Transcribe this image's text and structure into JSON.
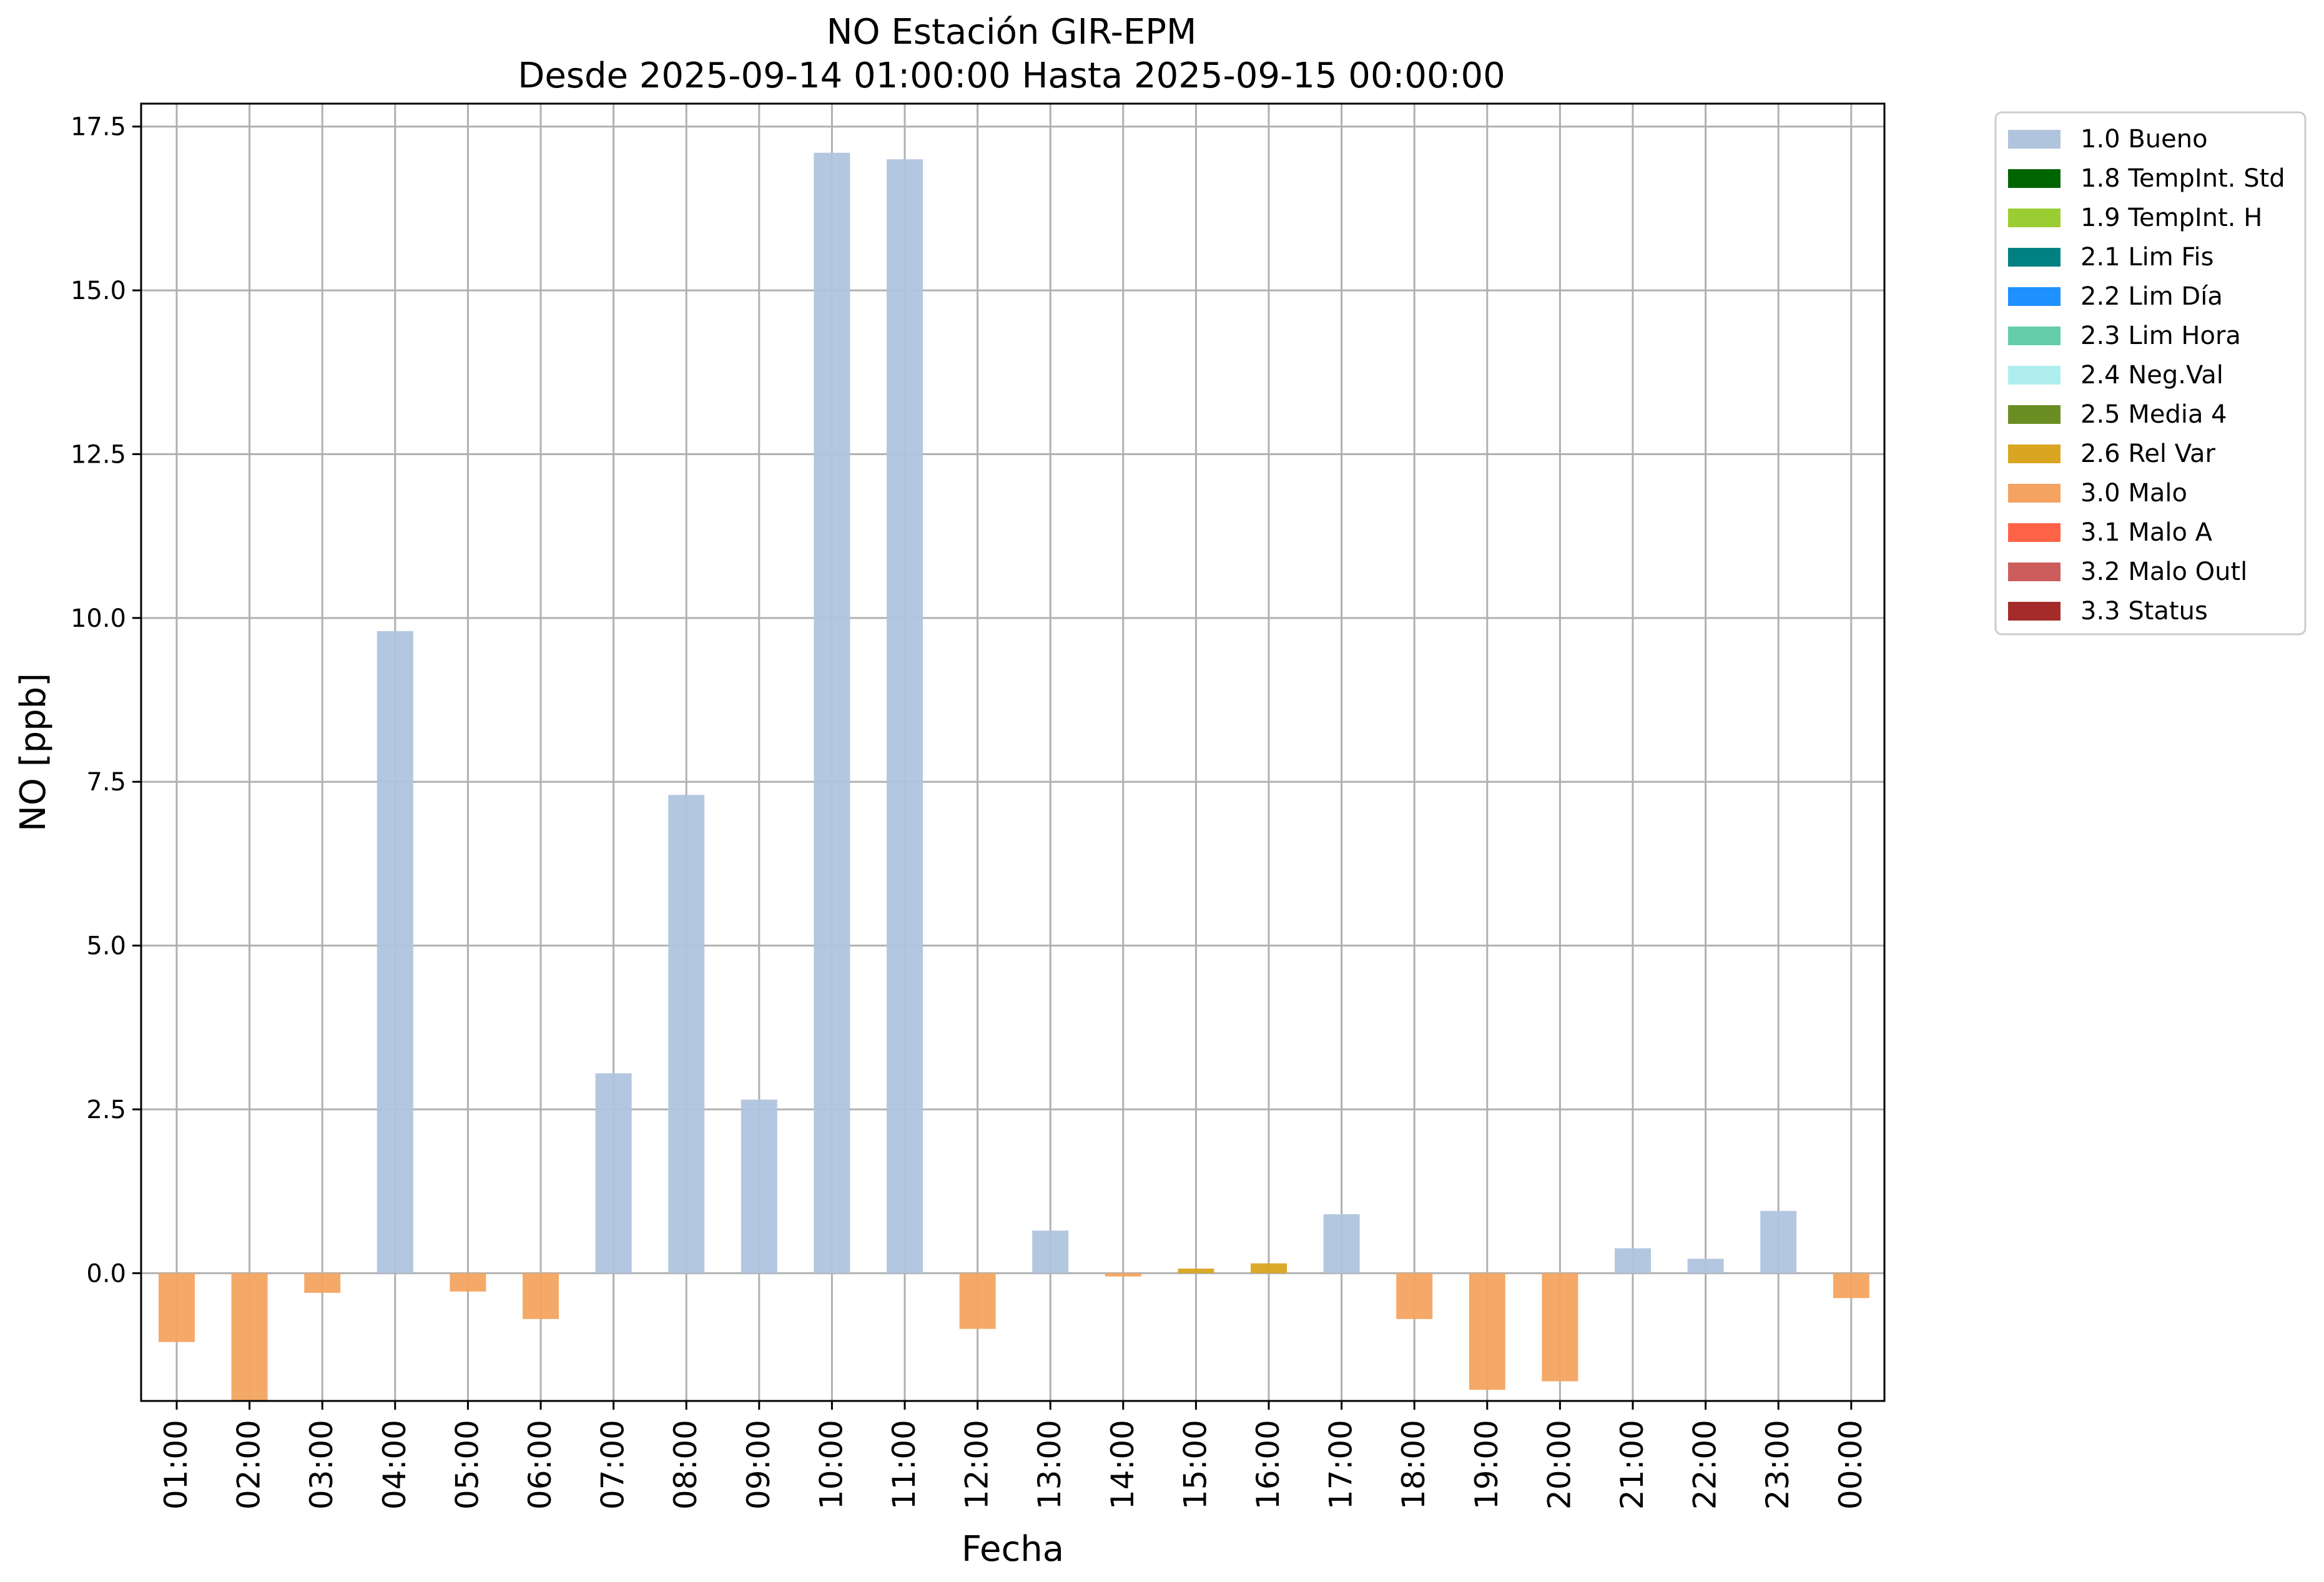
{
  "chart_data": {
    "type": "bar",
    "title": "NO Estación GIR-EPM",
    "subtitle": "Desde 2025-09-14 01:00:00 Hasta 2025-09-15 00:00:00",
    "xlabel": "Fecha",
    "ylabel": "NO [ppb]",
    "ylim": [
      -1.95,
      17.85
    ],
    "yticks": [
      "0.0",
      "2.5",
      "5.0",
      "7.5",
      "10.0",
      "12.5",
      "15.0",
      "17.5"
    ],
    "ytick_values": [
      0,
      2.5,
      5,
      7.5,
      10,
      12.5,
      15,
      17.5
    ],
    "grid": true,
    "legend_position": "outside-top-right",
    "categories": [
      "01:00",
      "02:00",
      "03:00",
      "04:00",
      "05:00",
      "06:00",
      "07:00",
      "08:00",
      "09:00",
      "10:00",
      "11:00",
      "12:00",
      "13:00",
      "14:00",
      "15:00",
      "16:00",
      "17:00",
      "18:00",
      "19:00",
      "20:00",
      "21:00",
      "22:00",
      "23:00",
      "00:00"
    ],
    "values": [
      -1.05,
      -1.95,
      -0.3,
      9.8,
      -0.28,
      -0.7,
      3.05,
      7.3,
      2.65,
      17.1,
      17.0,
      -0.85,
      0.65,
      -0.05,
      0.07,
      0.15,
      0.9,
      -0.7,
      -1.78,
      -1.65,
      0.38,
      0.22,
      0.95,
      -0.38
    ],
    "flags": [
      "3.0",
      "3.0",
      "3.0",
      "1.0",
      "3.0",
      "3.0",
      "1.0",
      "1.0",
      "1.0",
      "1.0",
      "1.0",
      "3.0",
      "1.0",
      "3.0",
      "2.6",
      "2.6",
      "1.0",
      "3.0",
      "3.0",
      "3.0",
      "1.0",
      "1.0",
      "1.0",
      "3.0"
    ],
    "legend": [
      {
        "code": "1.0",
        "label": "1.0 Bueno",
        "color": "#b0c4de"
      },
      {
        "code": "1.8",
        "label": "1.8 TempInt. Std",
        "color": "#006400"
      },
      {
        "code": "1.9",
        "label": "1.9 TempInt. H",
        "color": "#9acd32"
      },
      {
        "code": "2.1",
        "label": "2.1 Lim Fis",
        "color": "#008080"
      },
      {
        "code": "2.2",
        "label": "2.2 Lim Día",
        "color": "#1e90ff"
      },
      {
        "code": "2.3",
        "label": "2.3 Lim Hora",
        "color": "#66cdaa"
      },
      {
        "code": "2.4",
        "label": "2.4 Neg.Val",
        "color": "#afeeee"
      },
      {
        "code": "2.5",
        "label": "2.5 Media 4",
        "color": "#6b8e23"
      },
      {
        "code": "2.6",
        "label": "2.6 Rel Var",
        "color": "#daa520"
      },
      {
        "code": "3.0",
        "label": "3.0 Malo",
        "color": "#f4a460"
      },
      {
        "code": "3.1",
        "label": "3.1 Malo A",
        "color": "#ff6347"
      },
      {
        "code": "3.2",
        "label": "3.2 Malo Outl",
        "color": "#cd5c5c"
      },
      {
        "code": "3.3",
        "label": "3.3 Status",
        "color": "#a52a2a"
      }
    ]
  }
}
